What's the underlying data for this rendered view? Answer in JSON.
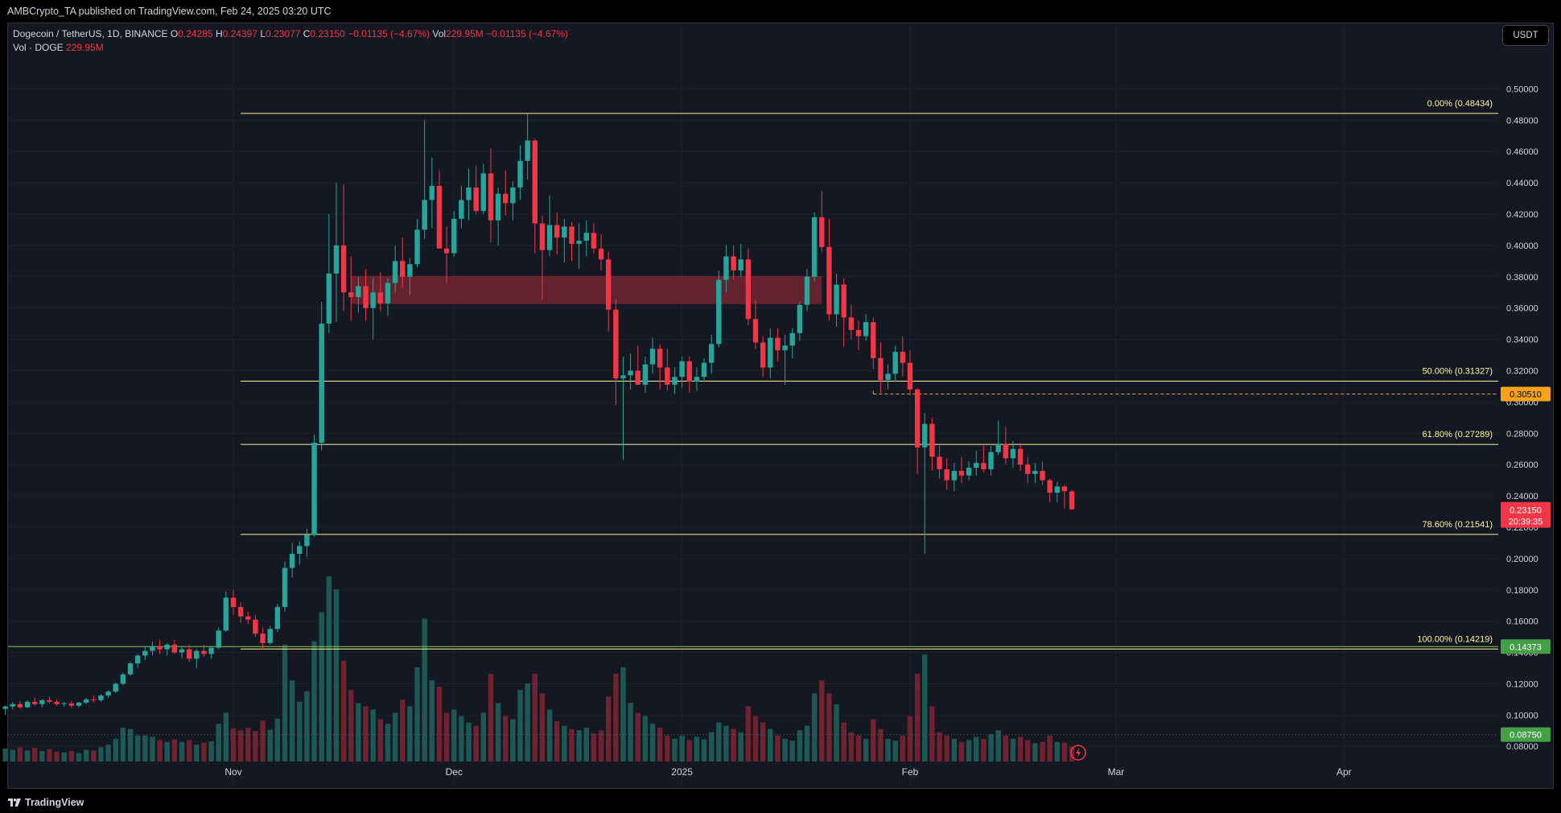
{
  "header": {
    "published_text": "AMBCrypto_TA published on TradingView.com, Feb 24, 2025 03:20 UTC"
  },
  "legend": {
    "symbol": "Dogecoin / TetherUS, 1D, BINANCE",
    "o_label": "O",
    "o_value": "0.24285",
    "h_label": "H",
    "h_value": "0.24397",
    "l_label": "L",
    "l_value": "0.23077",
    "c_label": "C",
    "c_value": "0.23150",
    "change": "−0.01135 (−4.67%)",
    "vol_label": "Vol",
    "vol_value": "229.95M",
    "vol_change": "−0.01135 (−4.67%)",
    "vol_row_label": "Vol · DOGE",
    "vol_row_value": "229.95M"
  },
  "currency_button": "USDT",
  "footer": {
    "brand": "TradingView"
  },
  "colors": {
    "background": "#141823",
    "up": "#26a69a",
    "down": "#f23645",
    "fib": "#fff59d",
    "zone": "#a62c3a",
    "green_line": "#8bc34a",
    "orange": "#f7a21b"
  },
  "chart_data": {
    "type": "candlestick",
    "title": "Dogecoin / TetherUS, 1D, BINANCE",
    "ylim": [
      0.0755,
      0.5115
    ],
    "y_ticks": [
      "0.08000",
      "0.10000",
      "0.12000",
      "0.14000",
      "0.16000",
      "0.18000",
      "0.20000",
      "0.22000",
      "0.24000",
      "0.26000",
      "0.28000",
      "0.30000",
      "0.32000",
      "0.34000",
      "0.36000",
      "0.38000",
      "0.40000",
      "0.42000",
      "0.44000",
      "0.46000",
      "0.48000",
      "0.50000"
    ],
    "x_labels": [
      {
        "label": "Nov",
        "date": "2024-11-01"
      },
      {
        "label": "Dec",
        "date": "2024-12-01"
      },
      {
        "label": "2025",
        "date": "2025-01-01"
      },
      {
        "label": "Feb",
        "date": "2025-02-01"
      },
      {
        "label": "Mar",
        "date": "2025-03-01"
      },
      {
        "label": "Apr",
        "date": "2025-04-01"
      }
    ],
    "first_date": "2024-10-01",
    "fib_levels": [
      {
        "label": "0.00% (0.48434)",
        "value": 0.48434
      },
      {
        "label": "50.00% (0.31327)",
        "value": 0.31327
      },
      {
        "label": "61.80% (0.27289)",
        "value": 0.27289
      },
      {
        "label": "78.60% (0.21541)",
        "value": 0.21541
      },
      {
        "label": "100.00% (0.14219)",
        "value": 0.14219
      }
    ],
    "fib_start_date": "2024-11-02",
    "resistance_zone": {
      "low": 0.3625,
      "high": 0.3805,
      "from": "2024-11-17",
      "to": "2025-01-20"
    },
    "orange_line": {
      "value": 0.3051,
      "from": "2025-01-27",
      "label": "0.30510"
    },
    "green_line": {
      "value": 0.14373,
      "label": "0.14373"
    },
    "dotted_line": {
      "value": 0.0875,
      "label": "0.08750"
    },
    "price_label": {
      "value": 0.2315,
      "label": "0.23150",
      "countdown": "20:39:35"
    },
    "candles": [
      [
        0.104,
        0.1062,
        0.1,
        0.1055,
        0.02
      ],
      [
        0.1055,
        0.1085,
        0.1035,
        0.107,
        0.018
      ],
      [
        0.107,
        0.109,
        0.104,
        0.105,
        0.022
      ],
      [
        0.105,
        0.1095,
        0.1045,
        0.1085,
        0.017
      ],
      [
        0.1085,
        0.111,
        0.106,
        0.107,
        0.021
      ],
      [
        0.107,
        0.11,
        0.105,
        0.1095,
        0.016
      ],
      [
        0.1095,
        0.1115,
        0.1075,
        0.1085,
        0.019
      ],
      [
        0.1085,
        0.11,
        0.106,
        0.107,
        0.015
      ],
      [
        0.107,
        0.1085,
        0.1055,
        0.1075,
        0.014
      ],
      [
        0.1075,
        0.109,
        0.1045,
        0.106,
        0.016
      ],
      [
        0.106,
        0.1085,
        0.105,
        0.108,
        0.013
      ],
      [
        0.108,
        0.111,
        0.107,
        0.11,
        0.018
      ],
      [
        0.11,
        0.1125,
        0.108,
        0.1095,
        0.017
      ],
      [
        0.1095,
        0.1135,
        0.1085,
        0.1125,
        0.022
      ],
      [
        0.1125,
        0.116,
        0.111,
        0.115,
        0.026
      ],
      [
        0.115,
        0.121,
        0.114,
        0.12,
        0.035
      ],
      [
        0.12,
        0.127,
        0.119,
        0.126,
        0.052
      ],
      [
        0.126,
        0.134,
        0.125,
        0.133,
        0.05
      ],
      [
        0.133,
        0.139,
        0.13,
        0.138,
        0.04
      ],
      [
        0.138,
        0.144,
        0.135,
        0.141,
        0.04
      ],
      [
        0.141,
        0.147,
        0.138,
        0.144,
        0.038
      ],
      [
        0.144,
        0.148,
        0.139,
        0.142,
        0.033
      ],
      [
        0.142,
        0.146,
        0.138,
        0.145,
        0.03
      ],
      [
        0.145,
        0.148,
        0.139,
        0.14,
        0.034
      ],
      [
        0.14,
        0.144,
        0.136,
        0.142,
        0.03
      ],
      [
        0.142,
        0.145,
        0.134,
        0.136,
        0.033
      ],
      [
        0.136,
        0.142,
        0.13,
        0.141,
        0.026
      ],
      [
        0.141,
        0.145,
        0.137,
        0.139,
        0.029
      ],
      [
        0.139,
        0.144,
        0.136,
        0.143,
        0.031
      ],
      [
        0.143,
        0.156,
        0.142,
        0.154,
        0.058
      ],
      [
        0.154,
        0.179,
        0.153,
        0.175,
        0.075
      ],
      [
        0.175,
        0.18,
        0.164,
        0.169,
        0.051
      ],
      [
        0.169,
        0.172,
        0.159,
        0.163,
        0.048
      ],
      [
        0.163,
        0.166,
        0.158,
        0.161,
        0.052
      ],
      [
        0.161,
        0.164,
        0.15,
        0.152,
        0.047
      ],
      [
        0.152,
        0.156,
        0.142,
        0.146,
        0.063
      ],
      [
        0.146,
        0.157,
        0.145,
        0.155,
        0.049
      ],
      [
        0.155,
        0.171,
        0.153,
        0.169,
        0.066
      ],
      [
        0.169,
        0.198,
        0.166,
        0.194,
        0.18
      ],
      [
        0.194,
        0.21,
        0.188,
        0.203,
        0.125
      ],
      [
        0.203,
        0.211,
        0.196,
        0.208,
        0.092
      ],
      [
        0.208,
        0.219,
        0.201,
        0.215,
        0.108
      ],
      [
        0.215,
        0.279,
        0.214,
        0.274,
        0.185
      ],
      [
        0.274,
        0.364,
        0.269,
        0.35,
        0.23
      ],
      [
        0.35,
        0.42,
        0.344,
        0.382,
        0.285
      ],
      [
        0.382,
        0.44,
        0.351,
        0.4,
        0.265
      ],
      [
        0.4,
        0.439,
        0.358,
        0.37,
        0.155
      ],
      [
        0.37,
        0.393,
        0.352,
        0.367,
        0.11
      ],
      [
        0.367,
        0.38,
        0.357,
        0.374,
        0.09
      ],
      [
        0.374,
        0.385,
        0.352,
        0.36,
        0.085
      ],
      [
        0.36,
        0.379,
        0.34,
        0.37,
        0.08
      ],
      [
        0.37,
        0.383,
        0.358,
        0.363,
        0.065
      ],
      [
        0.363,
        0.379,
        0.355,
        0.376,
        0.058
      ],
      [
        0.376,
        0.4,
        0.37,
        0.39,
        0.075
      ],
      [
        0.39,
        0.405,
        0.373,
        0.38,
        0.095
      ],
      [
        0.38,
        0.392,
        0.368,
        0.388,
        0.085
      ],
      [
        0.388,
        0.417,
        0.386,
        0.41,
        0.145
      ],
      [
        0.41,
        0.48,
        0.404,
        0.429,
        0.22
      ],
      [
        0.429,
        0.456,
        0.411,
        0.438,
        0.125
      ],
      [
        0.438,
        0.448,
        0.398,
        0.398,
        0.115
      ],
      [
        0.398,
        0.412,
        0.376,
        0.395,
        0.075
      ],
      [
        0.395,
        0.422,
        0.393,
        0.417,
        0.08
      ],
      [
        0.417,
        0.438,
        0.411,
        0.429,
        0.07
      ],
      [
        0.429,
        0.449,
        0.416,
        0.437,
        0.06
      ],
      [
        0.437,
        0.451,
        0.42,
        0.422,
        0.055
      ],
      [
        0.422,
        0.452,
        0.42,
        0.446,
        0.075
      ],
      [
        0.446,
        0.462,
        0.402,
        0.416,
        0.135
      ],
      [
        0.416,
        0.437,
        0.4,
        0.433,
        0.09
      ],
      [
        0.433,
        0.448,
        0.419,
        0.427,
        0.07
      ],
      [
        0.427,
        0.441,
        0.416,
        0.437,
        0.065
      ],
      [
        0.437,
        0.464,
        0.429,
        0.454,
        0.11
      ],
      [
        0.454,
        0.4843,
        0.442,
        0.467,
        0.12
      ],
      [
        0.467,
        0.468,
        0.395,
        0.414,
        0.135
      ],
      [
        0.414,
        0.419,
        0.365,
        0.397,
        0.105
      ],
      [
        0.397,
        0.432,
        0.393,
        0.413,
        0.08
      ],
      [
        0.413,
        0.421,
        0.394,
        0.405,
        0.062
      ],
      [
        0.405,
        0.417,
        0.389,
        0.412,
        0.055
      ],
      [
        0.412,
        0.415,
        0.39,
        0.401,
        0.05
      ],
      [
        0.401,
        0.414,
        0.385,
        0.403,
        0.048
      ],
      [
        0.403,
        0.416,
        0.393,
        0.408,
        0.052
      ],
      [
        0.408,
        0.414,
        0.395,
        0.398,
        0.043
      ],
      [
        0.398,
        0.407,
        0.384,
        0.391,
        0.048
      ],
      [
        0.391,
        0.396,
        0.345,
        0.359,
        0.1
      ],
      [
        0.359,
        0.366,
        0.298,
        0.315,
        0.135
      ],
      [
        0.315,
        0.329,
        0.263,
        0.317,
        0.145
      ],
      [
        0.317,
        0.331,
        0.308,
        0.32,
        0.09
      ],
      [
        0.32,
        0.336,
        0.311,
        0.311,
        0.075
      ],
      [
        0.311,
        0.329,
        0.306,
        0.324,
        0.07
      ],
      [
        0.324,
        0.341,
        0.318,
        0.334,
        0.058
      ],
      [
        0.334,
        0.337,
        0.308,
        0.322,
        0.052
      ],
      [
        0.322,
        0.334,
        0.307,
        0.311,
        0.04
      ],
      [
        0.311,
        0.322,
        0.305,
        0.316,
        0.035
      ],
      [
        0.316,
        0.329,
        0.309,
        0.326,
        0.04
      ],
      [
        0.326,
        0.329,
        0.306,
        0.313,
        0.033
      ],
      [
        0.313,
        0.322,
        0.307,
        0.316,
        0.038
      ],
      [
        0.316,
        0.328,
        0.313,
        0.325,
        0.034
      ],
      [
        0.325,
        0.343,
        0.318,
        0.337,
        0.045
      ],
      [
        0.337,
        0.384,
        0.335,
        0.378,
        0.06
      ],
      [
        0.378,
        0.4,
        0.37,
        0.393,
        0.055
      ],
      [
        0.393,
        0.4,
        0.378,
        0.384,
        0.05
      ],
      [
        0.384,
        0.401,
        0.38,
        0.391,
        0.045
      ],
      [
        0.391,
        0.398,
        0.349,
        0.353,
        0.085
      ],
      [
        0.353,
        0.365,
        0.334,
        0.338,
        0.07
      ],
      [
        0.338,
        0.342,
        0.316,
        0.322,
        0.06
      ],
      [
        0.322,
        0.347,
        0.315,
        0.341,
        0.05
      ],
      [
        0.341,
        0.347,
        0.326,
        0.333,
        0.04
      ],
      [
        0.333,
        0.343,
        0.311,
        0.336,
        0.035
      ],
      [
        0.336,
        0.347,
        0.328,
        0.344,
        0.032
      ],
      [
        0.344,
        0.364,
        0.339,
        0.362,
        0.048
      ],
      [
        0.362,
        0.385,
        0.358,
        0.38,
        0.055
      ],
      [
        0.38,
        0.421,
        0.377,
        0.418,
        0.105
      ],
      [
        0.418,
        0.435,
        0.396,
        0.399,
        0.125
      ],
      [
        0.399,
        0.417,
        0.352,
        0.356,
        0.105
      ],
      [
        0.356,
        0.382,
        0.348,
        0.375,
        0.088
      ],
      [
        0.375,
        0.379,
        0.335,
        0.354,
        0.06
      ],
      [
        0.354,
        0.362,
        0.34,
        0.346,
        0.045
      ],
      [
        0.346,
        0.352,
        0.333,
        0.342,
        0.04
      ],
      [
        0.342,
        0.356,
        0.339,
        0.351,
        0.035
      ],
      [
        0.351,
        0.354,
        0.321,
        0.328,
        0.065
      ],
      [
        0.328,
        0.338,
        0.306,
        0.314,
        0.05
      ],
      [
        0.314,
        0.324,
        0.308,
        0.318,
        0.035
      ],
      [
        0.318,
        0.336,
        0.313,
        0.332,
        0.032
      ],
      [
        0.332,
        0.342,
        0.316,
        0.325,
        0.04
      ],
      [
        0.325,
        0.333,
        0.304,
        0.308,
        0.07
      ],
      [
        0.308,
        0.309,
        0.254,
        0.271,
        0.135
      ],
      [
        0.271,
        0.293,
        0.203,
        0.286,
        0.165
      ],
      [
        0.286,
        0.29,
        0.256,
        0.265,
        0.085
      ],
      [
        0.265,
        0.272,
        0.251,
        0.257,
        0.045
      ],
      [
        0.257,
        0.264,
        0.244,
        0.25,
        0.04
      ],
      [
        0.25,
        0.261,
        0.243,
        0.256,
        0.035
      ],
      [
        0.256,
        0.265,
        0.248,
        0.253,
        0.03
      ],
      [
        0.253,
        0.262,
        0.25,
        0.258,
        0.033
      ],
      [
        0.258,
        0.269,
        0.253,
        0.261,
        0.038
      ],
      [
        0.261,
        0.272,
        0.255,
        0.257,
        0.035
      ],
      [
        0.257,
        0.272,
        0.253,
        0.268,
        0.042
      ],
      [
        0.268,
        0.288,
        0.266,
        0.273,
        0.048
      ],
      [
        0.273,
        0.284,
        0.26,
        0.264,
        0.04
      ],
      [
        0.264,
        0.275,
        0.258,
        0.27,
        0.035
      ],
      [
        0.27,
        0.274,
        0.256,
        0.26,
        0.038
      ],
      [
        0.26,
        0.265,
        0.248,
        0.254,
        0.033
      ],
      [
        0.254,
        0.261,
        0.248,
        0.256,
        0.028
      ],
      [
        0.256,
        0.262,
        0.247,
        0.25,
        0.03
      ],
      [
        0.25,
        0.251,
        0.236,
        0.242,
        0.04
      ],
      [
        0.242,
        0.249,
        0.236,
        0.246,
        0.03
      ],
      [
        0.246,
        0.247,
        0.232,
        0.243,
        0.029
      ],
      [
        0.2429,
        0.244,
        0.2308,
        0.2315,
        0.023
      ]
    ]
  }
}
